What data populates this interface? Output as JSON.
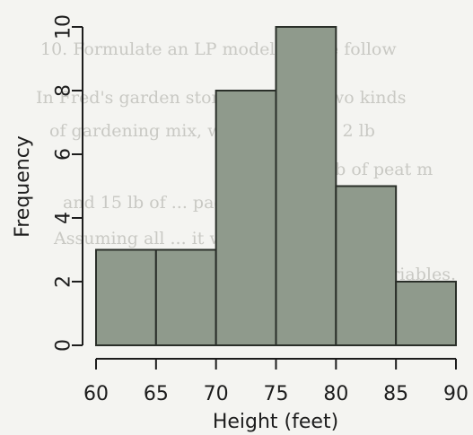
{
  "background_text": [
    "10. Formulate an LP model for the follow",
    "In Fred's garden store he makes two kinds",
    "of gardening mix, which requires 2 lb",
    "requires 1 lb of peat m",
    "and 15 lb of ... package of",
    "Assuming all ... it will sell,",
    "... variables."
  ],
  "colors": {
    "bar_fill": "#8f9a8c",
    "bar_stroke": "#2a2f29",
    "axis": "#1d1d1d"
  },
  "chart_data": {
    "type": "bar",
    "title": "",
    "xlabel": "Height (feet)",
    "ylabel": "Frequency",
    "bins": [
      {
        "from": 60,
        "to": 65,
        "value": 3
      },
      {
        "from": 65,
        "to": 70,
        "value": 3
      },
      {
        "from": 70,
        "to": 75,
        "value": 8
      },
      {
        "from": 75,
        "to": 80,
        "value": 10
      },
      {
        "from": 80,
        "to": 85,
        "value": 5
      },
      {
        "from": 85,
        "to": 90,
        "value": 2
      }
    ],
    "x_ticks": [
      60,
      65,
      70,
      75,
      80,
      85,
      90
    ],
    "y_ticks": [
      0,
      2,
      4,
      6,
      8,
      10
    ],
    "xlim": [
      60,
      90
    ],
    "ylim": [
      0,
      10
    ],
    "grid": false
  }
}
